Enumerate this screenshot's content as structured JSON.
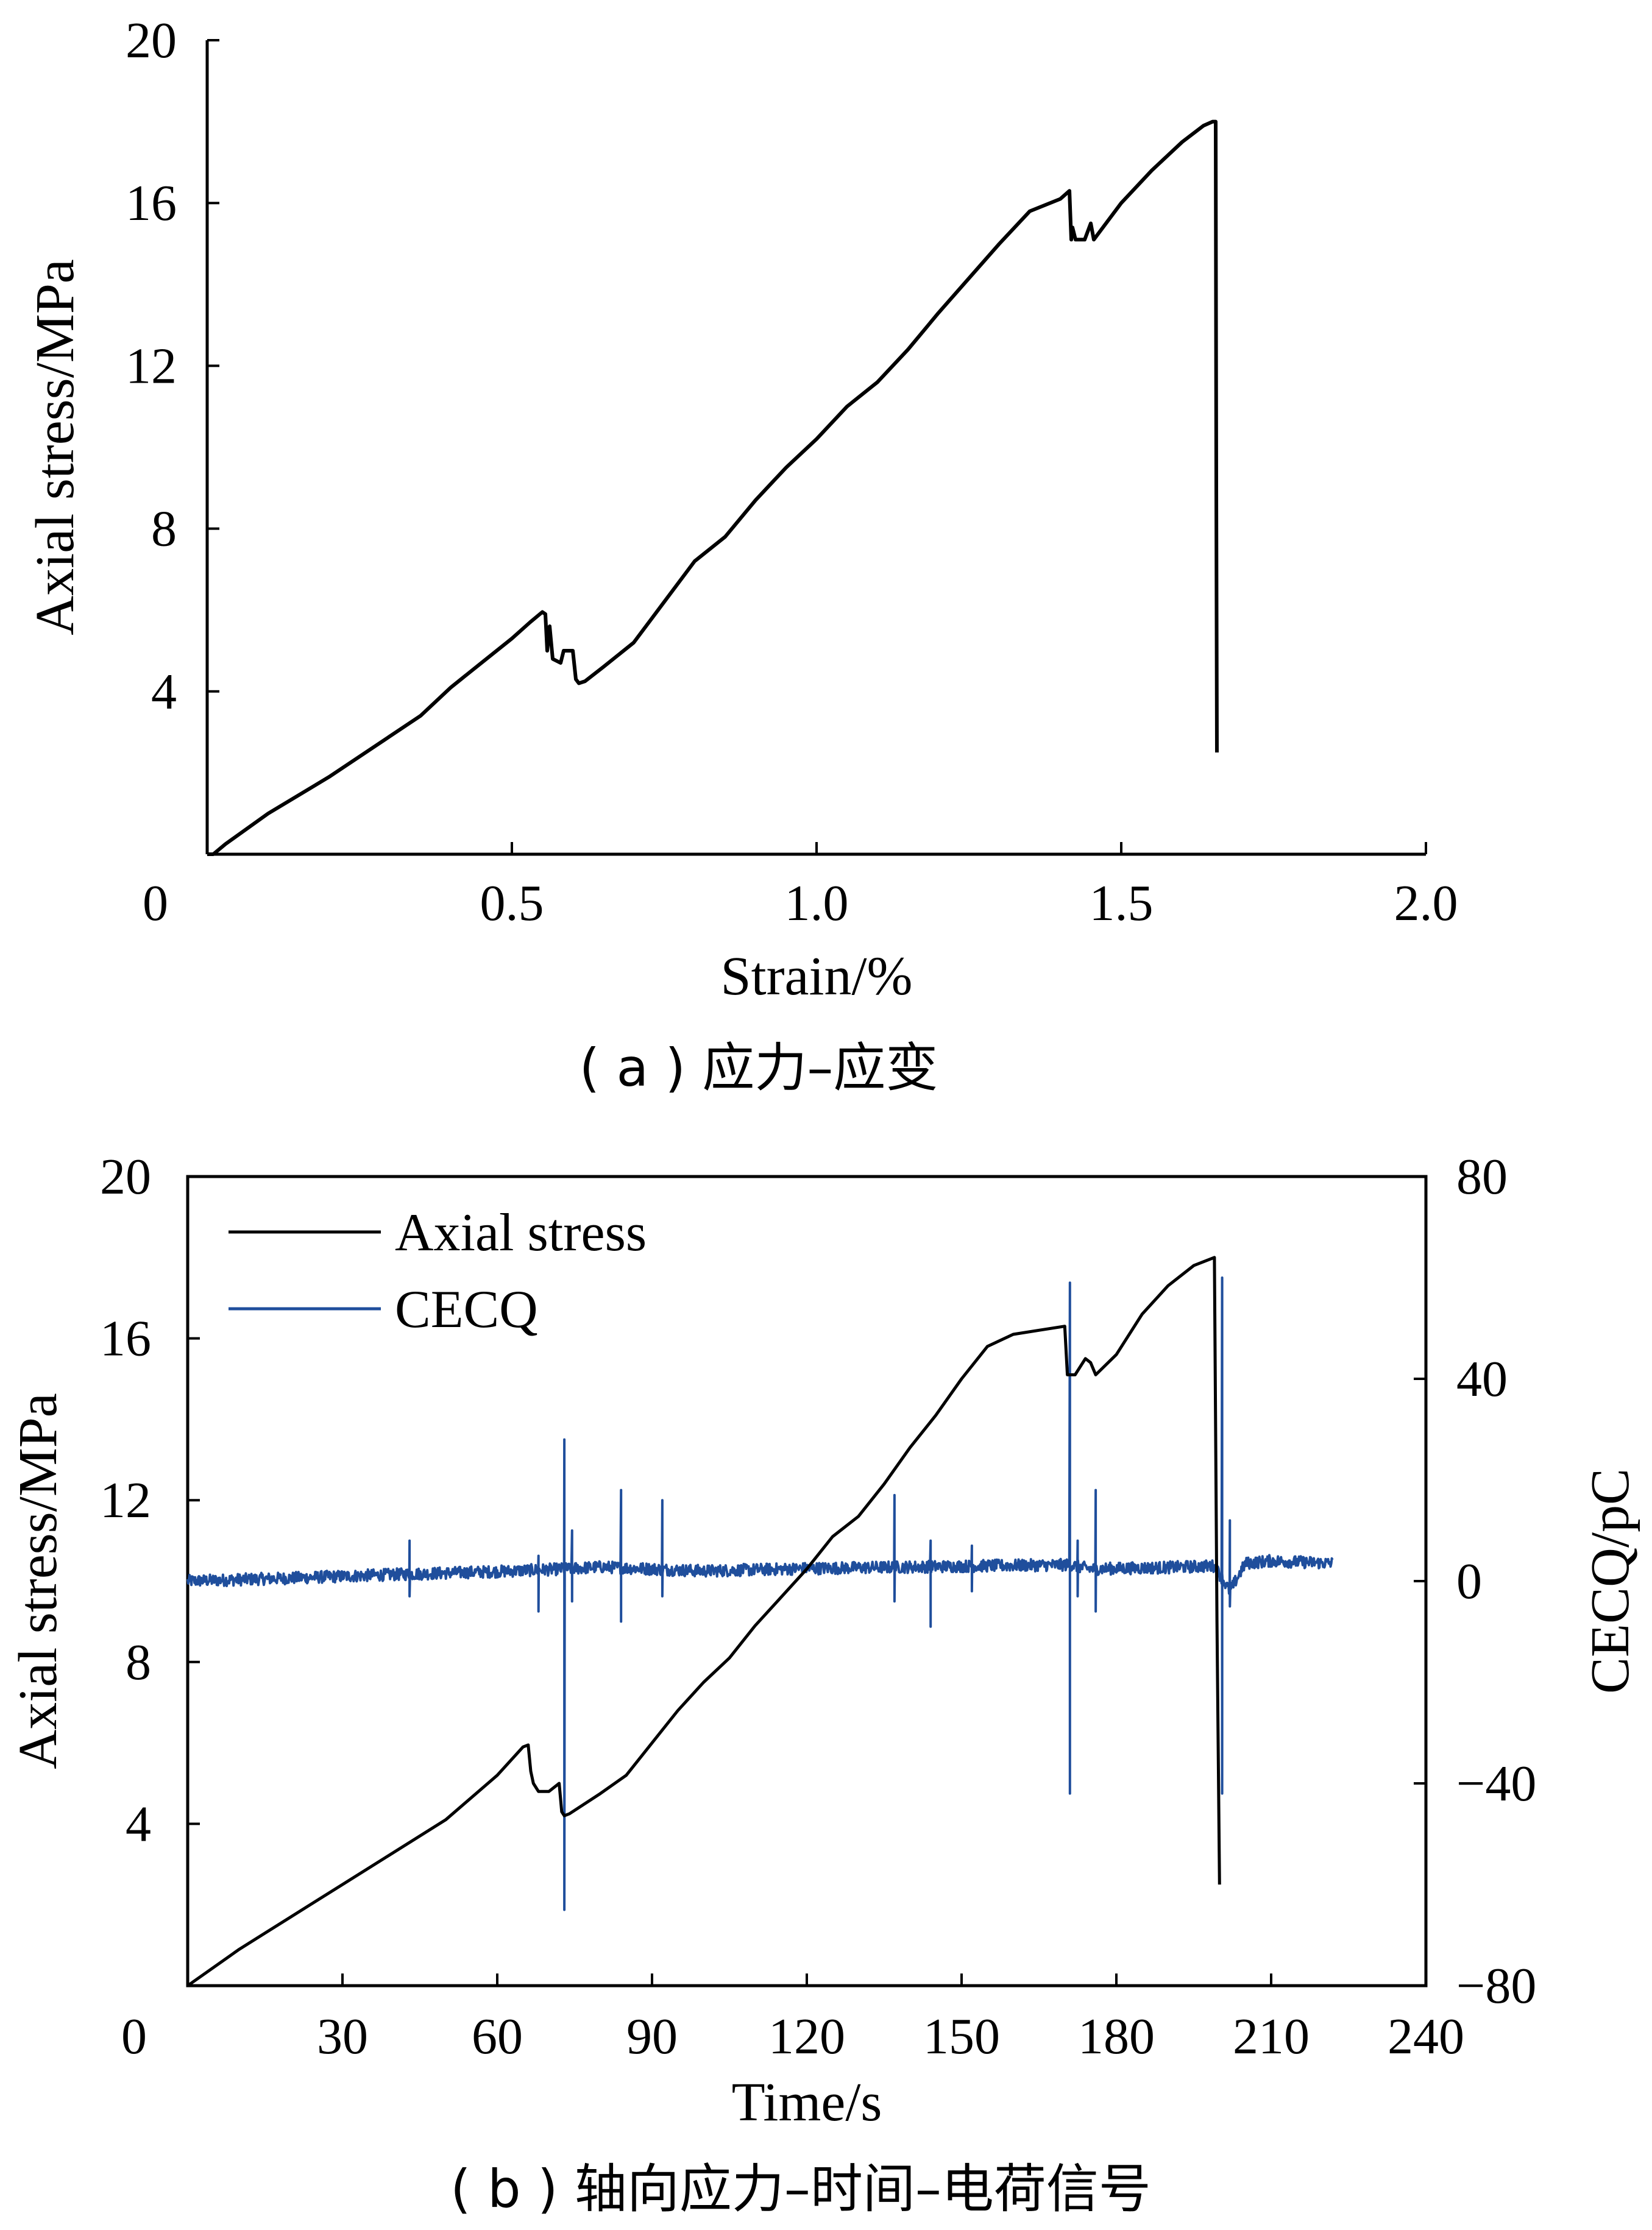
{
  "colors": {
    "stress": "#000000",
    "cecq": "#1f4e9c",
    "axis": "#000000"
  },
  "chart_data": [
    {
      "type": "line",
      "caption": "( a ) 应力–应变",
      "xlabel": "Strain/%",
      "ylabel": "Axial stress/MPa",
      "xlim": [
        0,
        2.0
      ],
      "ylim": [
        0,
        20
      ],
      "origin_label": "0",
      "x_ticks": [
        {
          "value": 0.5,
          "label": "0.5"
        },
        {
          "value": 1.0,
          "label": "1.0"
        },
        {
          "value": 1.5,
          "label": "1.5"
        },
        {
          "value": 2.0,
          "label": "2.0"
        }
      ],
      "y_ticks": [
        {
          "value": 4,
          "label": "4"
        },
        {
          "value": 8,
          "label": "8"
        },
        {
          "value": 12,
          "label": "12"
        },
        {
          "value": 16,
          "label": "16"
        },
        {
          "value": 20,
          "label": "20"
        }
      ],
      "series": [
        {
          "x": [
            0.0,
            0.01,
            0.03,
            0.1,
            0.2,
            0.3,
            0.35,
            0.4,
            0.45,
            0.5,
            0.53,
            0.55,
            0.555,
            0.558,
            0.562,
            0.567,
            0.58,
            0.585,
            0.59,
            0.6,
            0.605,
            0.61,
            0.62,
            0.65,
            0.7,
            0.75,
            0.8,
            0.85,
            0.9,
            0.95,
            1.0,
            1.05,
            1.1,
            1.15,
            1.2,
            1.3,
            1.35,
            1.4,
            1.415,
            1.418,
            1.42,
            1.425,
            1.44,
            1.45,
            1.455,
            1.46,
            1.5,
            1.55,
            1.6,
            1.635,
            1.65,
            1.655,
            1.656,
            1.657
          ],
          "y": [
            0.0,
            0.0,
            0.25,
            1.0,
            1.9,
            2.9,
            3.4,
            4.1,
            4.7,
            5.3,
            5.7,
            5.95,
            5.9,
            5.0,
            5.6,
            4.8,
            4.7,
            5.0,
            5.0,
            5.0,
            4.3,
            4.2,
            4.25,
            4.6,
            5.2,
            6.2,
            7.2,
            7.8,
            8.7,
            9.5,
            10.2,
            11.0,
            11.6,
            12.4,
            13.3,
            15.0,
            15.8,
            16.1,
            16.3,
            15.1,
            15.4,
            15.1,
            15.1,
            15.5,
            15.1,
            15.2,
            16.0,
            16.8,
            17.5,
            17.9,
            18.0,
            18.0,
            9.0,
            2.5
          ]
        }
      ]
    },
    {
      "type": "line",
      "caption": "( b ) 轴向应力–时间–电荷信号",
      "xlabel": "Time/s",
      "ylabel": "Axial stress/MPa",
      "y2label": "CECQ/pC",
      "xlim": [
        0,
        240
      ],
      "ylim": [
        0,
        20
      ],
      "y2lim": [
        -80,
        80
      ],
      "origin_label": "0",
      "x_ticks": [
        {
          "value": 30,
          "label": "30"
        },
        {
          "value": 60,
          "label": "60"
        },
        {
          "value": 90,
          "label": "90"
        },
        {
          "value": 120,
          "label": "120"
        },
        {
          "value": 150,
          "label": "150"
        },
        {
          "value": 180,
          "label": "180"
        },
        {
          "value": 210,
          "label": "210"
        },
        {
          "value": 240,
          "label": "240"
        }
      ],
      "y_ticks": [
        {
          "value": 4,
          "label": "4"
        },
        {
          "value": 8,
          "label": "8"
        },
        {
          "value": 12,
          "label": "12"
        },
        {
          "value": 16,
          "label": "16"
        },
        {
          "value": 20,
          "label": "20"
        }
      ],
      "y2_ticks": [
        {
          "value": 80,
          "label": "80"
        },
        {
          "value": 40,
          "label": "40"
        },
        {
          "value": 0,
          "label": "0"
        },
        {
          "value": -40,
          "label": "−40"
        },
        {
          "value": -80,
          "label": "−80"
        }
      ],
      "legend": [
        "Axial stress",
        "CECQ"
      ],
      "legend_position": "top-left",
      "series": [
        {
          "name": "Axial stress",
          "x": [
            0,
            10,
            20,
            30,
            40,
            50,
            60,
            65,
            66,
            66.5,
            67,
            68,
            70,
            72,
            72.5,
            73,
            74,
            80,
            85,
            90,
            95,
            100,
            105,
            110,
            115,
            120,
            125,
            130,
            135,
            140,
            145,
            150,
            155,
            160,
            165,
            170,
            170.5,
            171,
            172,
            174,
            175,
            176,
            180,
            185,
            190,
            195,
            199,
            199.5,
            200
          ],
          "y": [
            0,
            0.9,
            1.7,
            2.5,
            3.3,
            4.1,
            5.2,
            5.9,
            5.95,
            5.3,
            5.0,
            4.8,
            4.8,
            5.0,
            4.3,
            4.2,
            4.25,
            4.75,
            5.2,
            6.0,
            6.8,
            7.5,
            8.1,
            8.9,
            9.6,
            10.3,
            11.1,
            11.6,
            12.4,
            13.3,
            14.1,
            15.0,
            15.8,
            16.1,
            16.2,
            16.3,
            15.1,
            15.1,
            15.1,
            15.5,
            15.4,
            15.1,
            15.6,
            16.6,
            17.3,
            17.8,
            18.0,
            9.0,
            2.5
          ]
        },
        {
          "name": "CECQ",
          "baseline": {
            "x": [
              0,
              20,
              40,
              60,
              73,
              80,
              100,
              120,
              140,
              160,
              171,
              175,
              190,
              199,
              202,
              205,
              210,
              222
            ],
            "y": [
              0,
              0.6,
              1.3,
              1.9,
              2.4,
              2.8,
              2.0,
              2.5,
              2.8,
              3.1,
              3.2,
              2.4,
              2.7,
              3.0,
              -2.0,
              3.5,
              4.0,
              3.5
            ]
          },
          "spikes": [
            {
              "x": 43,
              "max": 8,
              "min": -3
            },
            {
              "x": 68,
              "max": 5,
              "min": -6
            },
            {
              "x": 73,
              "max": 28,
              "min": -65
            },
            {
              "x": 74.5,
              "max": 10,
              "min": -4
            },
            {
              "x": 84,
              "max": 18,
              "min": -8
            },
            {
              "x": 92,
              "max": 16,
              "min": -3
            },
            {
              "x": 137,
              "max": 17,
              "min": -4
            },
            {
              "x": 144,
              "max": 8,
              "min": -9
            },
            {
              "x": 152,
              "max": 7,
              "min": -2
            },
            {
              "x": 171,
              "max": 59,
              "min": -42
            },
            {
              "x": 172.5,
              "max": 8,
              "min": -3
            },
            {
              "x": 176,
              "max": 18,
              "min": -6
            },
            {
              "x": 200.5,
              "max": 60,
              "min": -42
            },
            {
              "x": 202,
              "max": 12,
              "min": -5
            }
          ]
        }
      ]
    }
  ]
}
